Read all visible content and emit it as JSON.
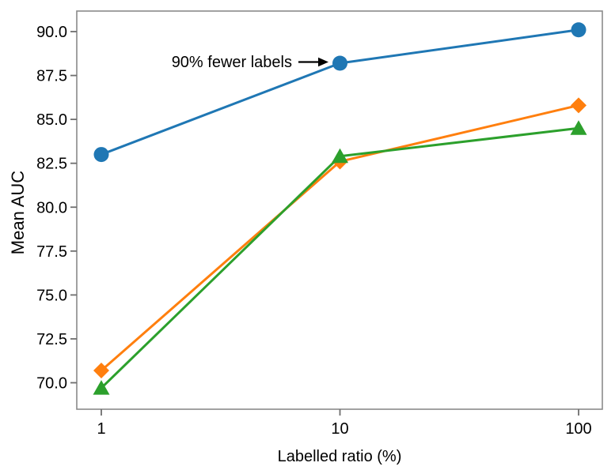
{
  "chart_data": {
    "type": "line",
    "x": [
      1,
      10,
      100
    ],
    "x_scale": "log",
    "xlabel": "Labelled ratio (%)",
    "ylabel": "Mean AUC",
    "x_tick_labels": [
      "1",
      "10",
      "100"
    ],
    "y_ticks": [
      70.0,
      72.5,
      75.0,
      77.5,
      80.0,
      82.5,
      85.0,
      87.5,
      90.0
    ],
    "y_tick_labels": [
      "70.0",
      "72.5",
      "75.0",
      "77.5",
      "80.0",
      "82.5",
      "85.0",
      "87.5",
      "90.0"
    ],
    "xlim": [
      0.79,
      127
    ],
    "ylim": [
      68.6,
      91.2
    ],
    "grid": false,
    "legend": false,
    "series": [
      {
        "marker": "circle",
        "color": "#1f77b4",
        "values": [
          83.0,
          88.2,
          90.1
        ]
      },
      {
        "marker": "diamond",
        "color": "#ff7f0e",
        "values": [
          70.7,
          82.6,
          85.8
        ]
      },
      {
        "marker": "triangle-up",
        "color": "#2ca02c",
        "values": [
          69.7,
          82.9,
          84.5
        ]
      }
    ],
    "annotation": {
      "text": "90% fewer labels",
      "target": {
        "x": 10,
        "y": 88.2
      }
    },
    "colors": {
      "spine": "#8a8a8a",
      "tick": "#6e6e6e",
      "text": "#000000",
      "arrow": "#000000",
      "background": "#ffffff"
    }
  }
}
